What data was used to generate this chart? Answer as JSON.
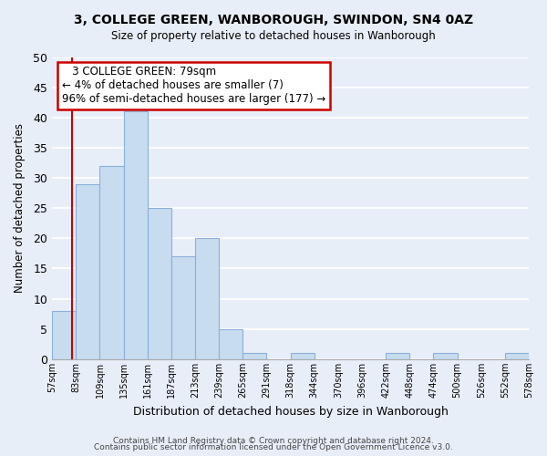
{
  "title": "3, COLLEGE GREEN, WANBOROUGH, SWINDON, SN4 0AZ",
  "subtitle": "Size of property relative to detached houses in Wanborough",
  "xlabel": "Distribution of detached houses by size in Wanborough",
  "ylabel": "Number of detached properties",
  "bin_labels": [
    "57sqm",
    "83sqm",
    "109sqm",
    "135sqm",
    "161sqm",
    "187sqm",
    "213sqm",
    "239sqm",
    "265sqm",
    "291sqm",
    "318sqm",
    "344sqm",
    "370sqm",
    "396sqm",
    "422sqm",
    "448sqm",
    "474sqm",
    "500sqm",
    "526sqm",
    "552sqm",
    "578sqm"
  ],
  "bar_values": [
    8,
    29,
    32,
    41,
    25,
    17,
    20,
    5,
    1,
    0,
    1,
    0,
    0,
    0,
    1,
    0,
    1,
    0,
    0,
    1
  ],
  "bar_color": "#c8dcf0",
  "bar_edge_color": "#8ab0d8",
  "highlight_color": "#cc0000",
  "annotation_title": "3 COLLEGE GREEN: 79sqm",
  "annotation_line1": "← 4% of detached houses are smaller (7)",
  "annotation_line2": "96% of semi-detached houses are larger (177) →",
  "ylim": [
    0,
    50
  ],
  "yticks": [
    0,
    5,
    10,
    15,
    20,
    25,
    30,
    35,
    40,
    45,
    50
  ],
  "footer1": "Contains HM Land Registry data © Crown copyright and database right 2024.",
  "footer2": "Contains public sector information licensed under the Open Government Licence v3.0.",
  "bg_color": "#e8eef8",
  "plot_bg_color": "#e8eef8",
  "grid_color": "#ffffff"
}
